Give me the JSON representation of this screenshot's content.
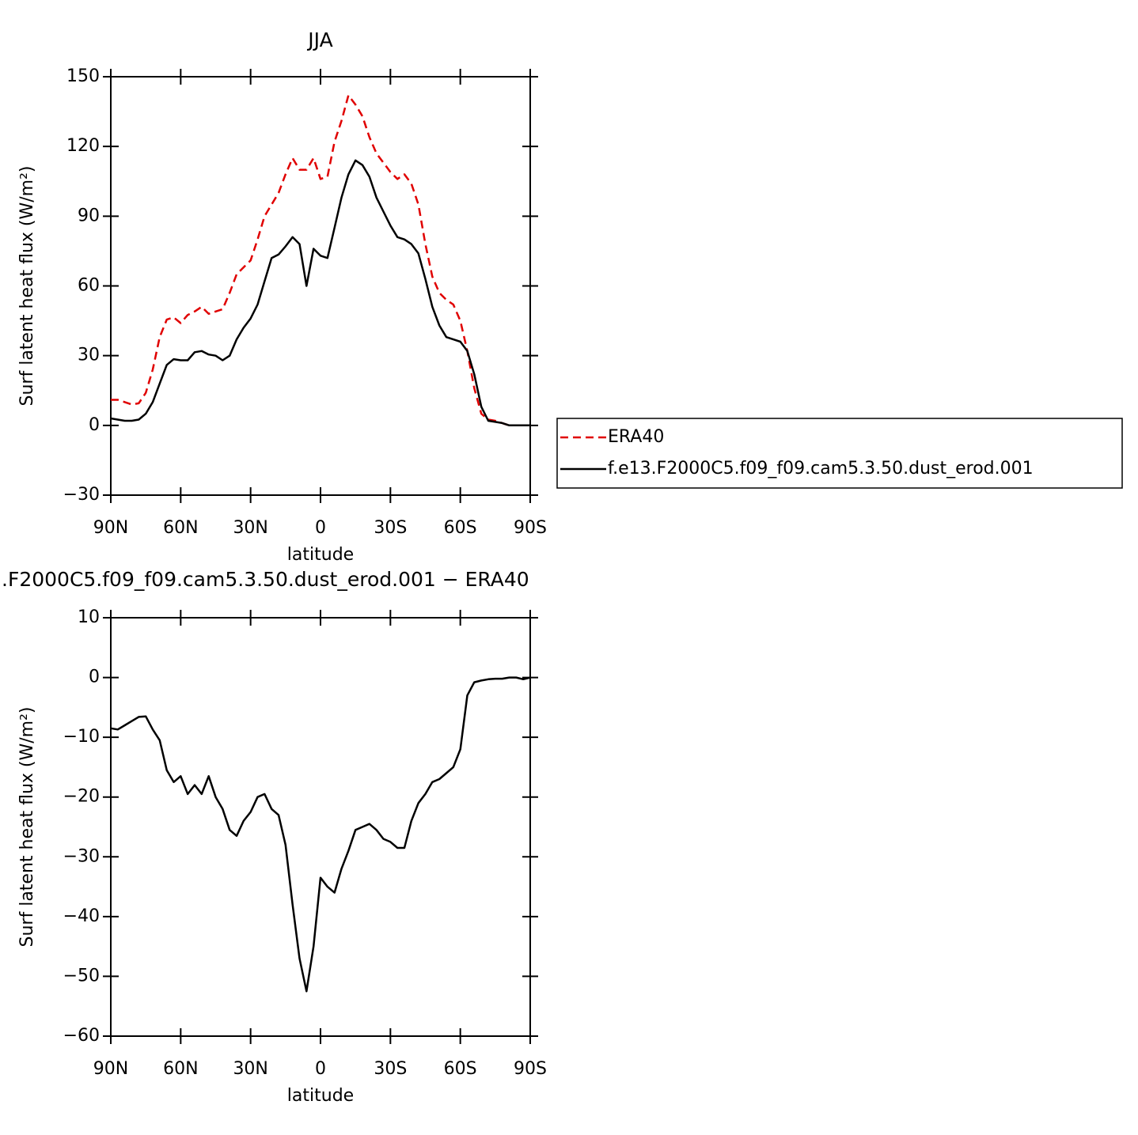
{
  "chart_data": [
    {
      "type": "line",
      "title": "JJA",
      "xlabel": "latitude",
      "ylabel": "Surf latent heat flux (W/m²)",
      "x": [
        90,
        87,
        84,
        81,
        78,
        75,
        72,
        69,
        66,
        63,
        60,
        57,
        54,
        51,
        48,
        45,
        42,
        39,
        36,
        33,
        30,
        27,
        24,
        21,
        18,
        15,
        12,
        9,
        6,
        3,
        0,
        -3,
        -6,
        -9,
        -12,
        -15,
        -18,
        -21,
        -24,
        -27,
        -30,
        -33,
        -36,
        -39,
        -42,
        -45,
        -48,
        -51,
        -54,
        -57,
        -60,
        -63,
        -66,
        -69,
        -72,
        -75,
        -78,
        -81,
        -84,
        -87,
        -90
      ],
      "series": [
        {
          "name": "ERA40",
          "color": "#e00000",
          "line_style": "dashed",
          "values": [
            11,
            11,
            10,
            9,
            9.5,
            14,
            24,
            38,
            45.5,
            46.5,
            44,
            47.5,
            49,
            51,
            48,
            49,
            50,
            57,
            65,
            68,
            71,
            80,
            90,
            95,
            100,
            108,
            115,
            110,
            110,
            115,
            106,
            107,
            122,
            131,
            142,
            138,
            133,
            124,
            117,
            113,
            109,
            106,
            108,
            104,
            95,
            78,
            64,
            57,
            54,
            52,
            45,
            32,
            16,
            5,
            2.5,
            2,
            1,
            0,
            0,
            0,
            0
          ]
        },
        {
          "name": "f.e13.F2000C5.f09_f09.cam5.3.50.dust_erod.001",
          "color": "#000000",
          "line_style": "solid",
          "values": [
            3,
            2.5,
            2,
            2,
            2.5,
            5,
            10,
            18,
            26,
            28.5,
            28,
            28,
            31.5,
            32,
            30.5,
            30,
            28,
            30,
            37,
            42,
            46,
            52,
            62,
            72,
            73.5,
            77,
            81,
            78,
            60,
            76,
            73,
            72,
            85,
            98,
            108,
            114,
            112,
            107,
            98,
            92,
            86,
            81,
            80,
            78,
            74,
            63,
            51,
            43,
            38,
            37,
            36,
            32,
            22,
            8,
            2,
            1.5,
            1,
            0,
            0,
            0,
            0
          ]
        }
      ],
      "xlim": [
        90,
        -90
      ],
      "ylim": [
        -30,
        150
      ],
      "xticks": [
        {
          "value": 90,
          "label": "90N"
        },
        {
          "value": 60,
          "label": "60N"
        },
        {
          "value": 30,
          "label": "30N"
        },
        0,
        {
          "value": -30,
          "label": "30S"
        },
        {
          "value": -60,
          "label": "60S"
        },
        {
          "value": -90,
          "label": "90S"
        }
      ],
      "yticks": [
        {
          "value": -30,
          "label": "−30"
        },
        0,
        30,
        60,
        90,
        120,
        150
      ],
      "legend": "right"
    },
    {
      "type": "line",
      "title": ".F2000C5.f09_f09.cam5.3.50.dust_erod.001 − ERA40",
      "xlabel": "latitude",
      "ylabel": "Surf latent heat flux (W/m²)",
      "x": [
        90,
        87,
        84,
        81,
        78,
        75,
        72,
        69,
        66,
        63,
        60,
        57,
        54,
        51,
        48,
        45,
        42,
        39,
        36,
        33,
        30,
        27,
        24,
        21,
        18,
        15,
        12,
        9,
        6,
        3,
        0,
        -3,
        -6,
        -9,
        -12,
        -15,
        -18,
        -21,
        -24,
        -27,
        -30,
        -33,
        -36,
        -39,
        -42,
        -45,
        -48,
        -51,
        -54,
        -57,
        -60,
        -63,
        -66,
        -69,
        -72,
        -75,
        -78,
        -81,
        -84,
        -87,
        -90
      ],
      "values": [
        -8.5,
        -8.7,
        -8,
        -7.3,
        -6.6,
        -6.5,
        -8.7,
        -10.5,
        -15.5,
        -17.5,
        -16.5,
        -19.5,
        -18,
        -19.5,
        -16.5,
        -20,
        -22,
        -25.5,
        -26.5,
        -24,
        -22.5,
        -20,
        -19.5,
        -22,
        -23,
        -28,
        -38,
        -47,
        -52.5,
        -45,
        -33.5,
        -35,
        -36,
        -32,
        -29,
        -25.5,
        -25,
        -24.5,
        -25.5,
        -27,
        -27.5,
        -28.5,
        -28.5,
        -24,
        -21,
        -19.5,
        -17.5,
        -17,
        -16,
        -15,
        -12,
        -3,
        -0.8,
        -0.5,
        -0.3,
        -0.2,
        -0.2,
        0,
        0,
        -0.3,
        0
      ],
      "color": "#000000",
      "xlim": [
        90,
        -90
      ],
      "ylim": [
        -60,
        10
      ],
      "xticks": [
        {
          "value": 90,
          "label": "90N"
        },
        {
          "value": 60,
          "label": "60N"
        },
        {
          "value": 30,
          "label": "30N"
        },
        0,
        {
          "value": -30,
          "label": "30S"
        },
        {
          "value": -60,
          "label": "60S"
        },
        {
          "value": -90,
          "label": "90S"
        }
      ],
      "yticks": [
        {
          "value": -60,
          "label": "−60"
        },
        {
          "value": -50,
          "label": "−50"
        },
        {
          "value": -40,
          "label": "−40"
        },
        {
          "value": -30,
          "label": "−30"
        },
        {
          "value": -20,
          "label": "−20"
        },
        {
          "value": -10,
          "label": "−10"
        },
        0,
        10
      ]
    }
  ]
}
